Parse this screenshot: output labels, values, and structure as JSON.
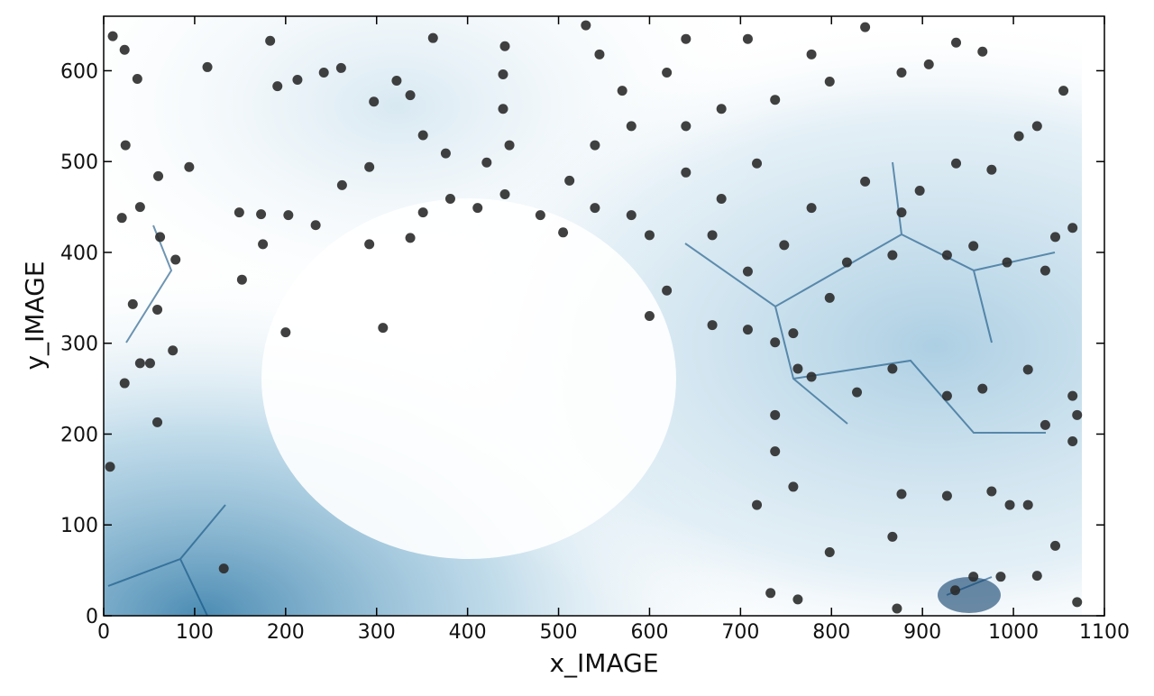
{
  "chart_data": {
    "type": "scatter",
    "xlabel": "x_IMAGE",
    "ylabel": "y_IMAGE",
    "color": "#2b2b2b",
    "x": [
      7,
      132,
      23,
      59,
      200,
      307,
      152,
      76,
      40,
      51,
      32,
      59,
      79,
      62,
      40,
      20,
      60,
      94,
      24,
      10,
      23,
      37,
      114,
      183,
      191,
      213,
      242,
      261,
      297,
      322,
      362,
      337,
      441,
      439,
      439,
      446,
      421,
      376,
      351,
      292,
      262,
      233,
      203,
      173,
      149,
      175,
      292,
      337,
      351,
      381,
      411,
      441,
      480,
      505,
      530,
      545,
      570,
      580,
      540,
      512,
      540,
      580,
      600,
      619,
      669,
      708,
      738,
      758,
      798,
      817,
      867,
      927,
      956,
      993,
      1035,
      1046,
      1065,
      1065,
      1065,
      1035,
      1016,
      966,
      927,
      867,
      828,
      778,
      763,
      738,
      758,
      718,
      738,
      798,
      867,
      877,
      927,
      976,
      996,
      1016,
      1046,
      1026,
      986,
      956,
      936,
      733,
      763,
      872,
      1070,
      1070,
      748,
      877,
      976,
      1026,
      1055,
      937,
      877,
      798,
      738,
      679,
      640,
      619,
      640,
      708,
      778,
      837,
      907,
      966,
      1006,
      937,
      897,
      837,
      778,
      718,
      679,
      640,
      600,
      669,
      708
    ],
    "y": [
      164,
      52,
      256,
      213,
      312,
      317,
      370,
      292,
      278,
      278,
      343,
      337,
      392,
      417,
      450,
      438,
      484,
      494,
      518,
      638,
      623,
      591,
      604,
      633,
      583,
      590,
      598,
      603,
      566,
      589,
      636,
      573,
      627,
      596,
      558,
      518,
      499,
      509,
      529,
      494,
      474,
      430,
      441,
      442,
      444,
      409,
      409,
      416,
      444,
      459,
      449,
      464,
      441,
      422,
      650,
      618,
      578,
      539,
      518,
      479,
      449,
      441,
      330,
      358,
      320,
      315,
      301,
      311,
      350,
      389,
      397,
      397,
      407,
      389,
      380,
      417,
      427,
      242,
      192,
      210,
      271,
      250,
      242,
      272,
      246,
      263,
      272,
      221,
      142,
      122,
      181,
      70,
      87,
      134,
      132,
      137,
      122,
      122,
      77,
      44,
      43,
      43,
      28,
      25,
      18,
      8,
      15,
      221,
      408,
      444,
      491,
      539,
      578,
      631,
      598,
      588,
      568,
      558,
      539,
      598,
      635,
      635,
      618,
      648,
      607,
      621,
      528,
      498,
      468,
      478,
      449,
      498,
      459,
      488,
      419,
      419,
      379
    ],
    "xlim": [
      0,
      1100
    ],
    "ylim": [
      0,
      660
    ],
    "xticks": [
      0,
      100,
      200,
      300,
      400,
      500,
      600,
      700,
      800,
      900,
      1000,
      1100
    ],
    "yticks": [
      0,
      100,
      200,
      300,
      400,
      500,
      600
    ]
  }
}
